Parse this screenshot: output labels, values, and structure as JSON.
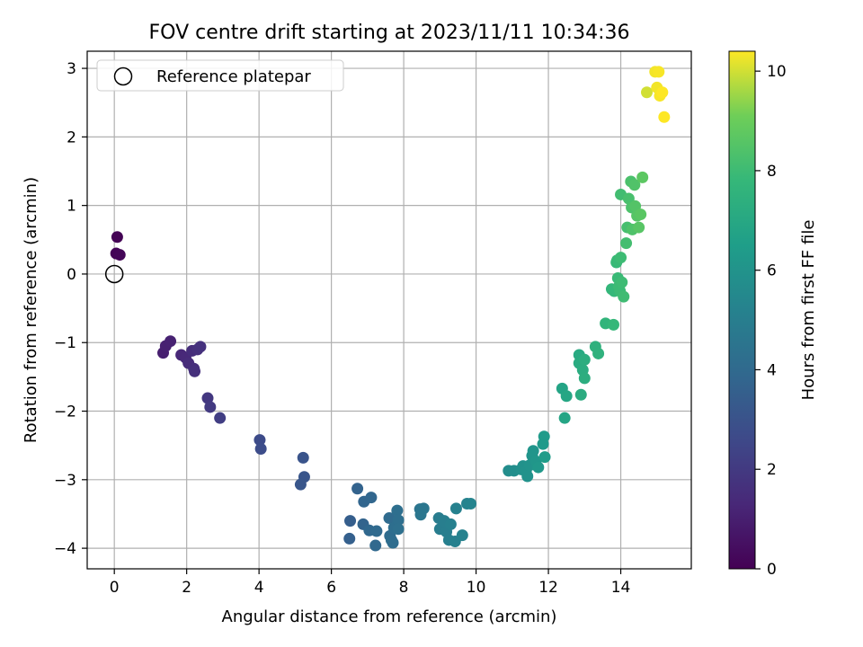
{
  "chart_data": {
    "type": "scatter",
    "title": "FOV centre drift starting at 2023/11/11 10:34:36",
    "xlabel": "Angular distance from reference (arcmin)",
    "ylabel": "Rotation from reference (arcmin)",
    "xlim": [
      -0.75,
      15.95
    ],
    "ylim": [
      -4.3,
      3.25
    ],
    "xticks": [
      0,
      2,
      4,
      6,
      8,
      10,
      12,
      14
    ],
    "yticks": [
      -4,
      -3,
      -2,
      -1,
      0,
      1,
      2,
      3
    ],
    "grid": true,
    "legend": {
      "placement": "top-left",
      "entries": [
        "Reference platepar"
      ]
    },
    "reference_point": {
      "x": 0,
      "y": 0
    },
    "colorbar": {
      "label": "Hours from first FF file",
      "colormap": "viridis",
      "range": [
        0,
        10.4
      ],
      "ticks": [
        0,
        2,
        4,
        6,
        8,
        10
      ]
    },
    "points": [
      {
        "x": 0.08,
        "y": 0.54,
        "h": 0.05
      },
      {
        "x": 0.05,
        "y": 0.3,
        "h": 0.1
      },
      {
        "x": 0.15,
        "y": 0.28,
        "h": 0.15
      },
      {
        "x": 1.35,
        "y": -1.15,
        "h": 1.0
      },
      {
        "x": 1.42,
        "y": -1.05,
        "h": 1.05
      },
      {
        "x": 1.55,
        "y": -0.98,
        "h": 1.1
      },
      {
        "x": 1.85,
        "y": -1.18,
        "h": 1.3
      },
      {
        "x": 1.97,
        "y": -1.22,
        "h": 1.35
      },
      {
        "x": 2.05,
        "y": -1.3,
        "h": 1.45
      },
      {
        "x": 2.15,
        "y": -1.12,
        "h": 1.5
      },
      {
        "x": 2.2,
        "y": -1.38,
        "h": 1.55
      },
      {
        "x": 2.22,
        "y": -1.42,
        "h": 1.6
      },
      {
        "x": 2.3,
        "y": -1.1,
        "h": 1.6
      },
      {
        "x": 2.38,
        "y": -1.06,
        "h": 1.65
      },
      {
        "x": 2.58,
        "y": -1.81,
        "h": 1.9
      },
      {
        "x": 2.65,
        "y": -1.94,
        "h": 2.0
      },
      {
        "x": 2.92,
        "y": -2.1,
        "h": 2.15
      },
      {
        "x": 4.02,
        "y": -2.42,
        "h": 2.7
      },
      {
        "x": 4.05,
        "y": -2.55,
        "h": 2.75
      },
      {
        "x": 5.22,
        "y": -2.68,
        "h": 3.05
      },
      {
        "x": 5.25,
        "y": -2.96,
        "h": 3.1
      },
      {
        "x": 5.15,
        "y": -3.07,
        "h": 3.15
      },
      {
        "x": 6.52,
        "y": -3.6,
        "h": 3.5
      },
      {
        "x": 6.5,
        "y": -3.86,
        "h": 3.55
      },
      {
        "x": 6.72,
        "y": -3.13,
        "h": 3.7
      },
      {
        "x": 6.88,
        "y": -3.65,
        "h": 3.75
      },
      {
        "x": 6.9,
        "y": -3.32,
        "h": 3.8
      },
      {
        "x": 7.1,
        "y": -3.26,
        "h": 3.85
      },
      {
        "x": 7.05,
        "y": -3.74,
        "h": 3.9
      },
      {
        "x": 7.22,
        "y": -3.96,
        "h": 3.95
      },
      {
        "x": 7.25,
        "y": -3.75,
        "h": 4.0
      },
      {
        "x": 7.6,
        "y": -3.56,
        "h": 4.05
      },
      {
        "x": 7.62,
        "y": -3.82,
        "h": 4.1
      },
      {
        "x": 7.66,
        "y": -3.88,
        "h": 4.15
      },
      {
        "x": 7.7,
        "y": -3.92,
        "h": 4.15
      },
      {
        "x": 7.73,
        "y": -3.7,
        "h": 4.2
      },
      {
        "x": 7.82,
        "y": -3.45,
        "h": 4.25
      },
      {
        "x": 7.85,
        "y": -3.59,
        "h": 4.25
      },
      {
        "x": 7.85,
        "y": -3.72,
        "h": 4.3
      },
      {
        "x": 8.45,
        "y": -3.43,
        "h": 4.55
      },
      {
        "x": 8.47,
        "y": -3.51,
        "h": 4.6
      },
      {
        "x": 8.55,
        "y": -3.42,
        "h": 4.6
      },
      {
        "x": 8.97,
        "y": -3.56,
        "h": 4.9
      },
      {
        "x": 9.0,
        "y": -3.72,
        "h": 4.95
      },
      {
        "x": 9.12,
        "y": -3.6,
        "h": 5.0
      },
      {
        "x": 9.18,
        "y": -3.76,
        "h": 5.0
      },
      {
        "x": 9.25,
        "y": -3.88,
        "h": 5.05
      },
      {
        "x": 9.3,
        "y": -3.65,
        "h": 5.1
      },
      {
        "x": 9.42,
        "y": -3.9,
        "h": 5.1
      },
      {
        "x": 9.45,
        "y": -3.42,
        "h": 5.15
      },
      {
        "x": 9.62,
        "y": -3.81,
        "h": 5.2
      },
      {
        "x": 9.75,
        "y": -3.35,
        "h": 5.25
      },
      {
        "x": 9.85,
        "y": -3.35,
        "h": 5.3
      },
      {
        "x": 10.9,
        "y": -2.87,
        "h": 5.7
      },
      {
        "x": 11.05,
        "y": -2.87,
        "h": 5.75
      },
      {
        "x": 11.25,
        "y": -2.85,
        "h": 5.85
      },
      {
        "x": 11.3,
        "y": -2.8,
        "h": 5.9
      },
      {
        "x": 11.38,
        "y": -2.88,
        "h": 5.95
      },
      {
        "x": 11.42,
        "y": -2.95,
        "h": 5.95
      },
      {
        "x": 11.48,
        "y": -2.79,
        "h": 6.0
      },
      {
        "x": 11.55,
        "y": -2.65,
        "h": 6.05
      },
      {
        "x": 11.58,
        "y": -2.58,
        "h": 6.1
      },
      {
        "x": 11.65,
        "y": -2.73,
        "h": 6.15
      },
      {
        "x": 11.72,
        "y": -2.82,
        "h": 6.2
      },
      {
        "x": 11.88,
        "y": -2.37,
        "h": 6.35
      },
      {
        "x": 11.85,
        "y": -2.48,
        "h": 6.3
      },
      {
        "x": 11.9,
        "y": -2.67,
        "h": 6.4
      },
      {
        "x": 12.38,
        "y": -1.67,
        "h": 6.8
      },
      {
        "x": 12.45,
        "y": -2.1,
        "h": 6.85
      },
      {
        "x": 12.5,
        "y": -1.78,
        "h": 6.9
      },
      {
        "x": 12.85,
        "y": -1.18,
        "h": 7.1
      },
      {
        "x": 12.85,
        "y": -1.3,
        "h": 7.15
      },
      {
        "x": 12.9,
        "y": -1.76,
        "h": 7.2
      },
      {
        "x": 12.95,
        "y": -1.4,
        "h": 7.25
      },
      {
        "x": 13.0,
        "y": -1.25,
        "h": 7.3
      },
      {
        "x": 13.0,
        "y": -1.52,
        "h": 7.3
      },
      {
        "x": 13.3,
        "y": -1.06,
        "h": 7.45
      },
      {
        "x": 13.38,
        "y": -1.16,
        "h": 7.5
      },
      {
        "x": 13.58,
        "y": -0.72,
        "h": 7.65
      },
      {
        "x": 13.75,
        "y": -0.22,
        "h": 7.75
      },
      {
        "x": 13.8,
        "y": -0.74,
        "h": 7.8
      },
      {
        "x": 13.82,
        "y": -0.25,
        "h": 7.8
      },
      {
        "x": 13.88,
        "y": 0.17,
        "h": 7.85
      },
      {
        "x": 13.9,
        "y": 0.2,
        "h": 7.9
      },
      {
        "x": 13.92,
        "y": -0.06,
        "h": 7.9
      },
      {
        "x": 13.95,
        "y": -0.18,
        "h": 7.95
      },
      {
        "x": 13.98,
        "y": -0.25,
        "h": 7.95
      },
      {
        "x": 14.0,
        "y": 0.24,
        "h": 8.0
      },
      {
        "x": 14.03,
        "y": -0.12,
        "h": 8.0
      },
      {
        "x": 14.08,
        "y": -0.33,
        "h": 8.05
      },
      {
        "x": 14.0,
        "y": 1.16,
        "h": 8.1
      },
      {
        "x": 14.15,
        "y": 0.45,
        "h": 8.15
      },
      {
        "x": 14.18,
        "y": 0.68,
        "h": 8.2
      },
      {
        "x": 14.22,
        "y": 1.1,
        "h": 8.25
      },
      {
        "x": 14.28,
        "y": 1.35,
        "h": 8.3
      },
      {
        "x": 14.3,
        "y": 0.97,
        "h": 8.35
      },
      {
        "x": 14.32,
        "y": 0.65,
        "h": 8.4
      },
      {
        "x": 14.38,
        "y": 1.3,
        "h": 8.45
      },
      {
        "x": 14.4,
        "y": 0.99,
        "h": 8.5
      },
      {
        "x": 14.45,
        "y": 0.85,
        "h": 8.55
      },
      {
        "x": 14.5,
        "y": 0.68,
        "h": 8.6
      },
      {
        "x": 14.55,
        "y": 0.87,
        "h": 8.65
      },
      {
        "x": 14.6,
        "y": 1.41,
        "h": 8.7
      },
      {
        "x": 14.72,
        "y": 2.65,
        "h": 10.0
      },
      {
        "x": 14.95,
        "y": 2.95,
        "h": 10.3
      },
      {
        "x": 15.0,
        "y": 2.72,
        "h": 10.3
      },
      {
        "x": 15.05,
        "y": 2.95,
        "h": 10.35
      },
      {
        "x": 15.08,
        "y": 2.6,
        "h": 10.35
      },
      {
        "x": 15.15,
        "y": 2.65,
        "h": 10.4
      },
      {
        "x": 15.2,
        "y": 2.29,
        "h": 10.4
      }
    ]
  }
}
